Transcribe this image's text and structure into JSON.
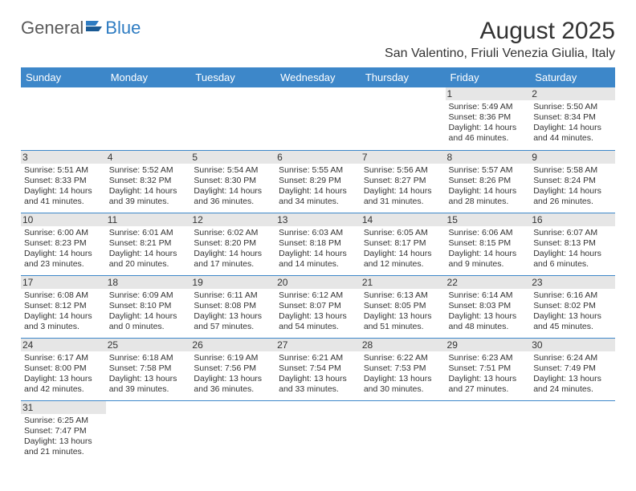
{
  "logo": {
    "text1": "General",
    "text2": "Blue"
  },
  "header": {
    "title": "August 2025",
    "location": "San Valentino, Friuli Venezia Giulia, Italy"
  },
  "colors": {
    "header_bg": "#3d87c9",
    "header_text": "#ffffff",
    "daynum_bg": "#e6e6e6",
    "rule": "#3d87c9",
    "brand_blue": "#2e7cc2",
    "brand_gray": "#5a5a5a"
  },
  "daysOfWeek": [
    "Sunday",
    "Monday",
    "Tuesday",
    "Wednesday",
    "Thursday",
    "Friday",
    "Saturday"
  ],
  "weeks": [
    [
      null,
      null,
      null,
      null,
      null,
      {
        "n": "1",
        "sr": "5:49 AM",
        "ss": "8:36 PM",
        "dl": "14 hours and 46 minutes."
      },
      {
        "n": "2",
        "sr": "5:50 AM",
        "ss": "8:34 PM",
        "dl": "14 hours and 44 minutes."
      }
    ],
    [
      {
        "n": "3",
        "sr": "5:51 AM",
        "ss": "8:33 PM",
        "dl": "14 hours and 41 minutes."
      },
      {
        "n": "4",
        "sr": "5:52 AM",
        "ss": "8:32 PM",
        "dl": "14 hours and 39 minutes."
      },
      {
        "n": "5",
        "sr": "5:54 AM",
        "ss": "8:30 PM",
        "dl": "14 hours and 36 minutes."
      },
      {
        "n": "6",
        "sr": "5:55 AM",
        "ss": "8:29 PM",
        "dl": "14 hours and 34 minutes."
      },
      {
        "n": "7",
        "sr": "5:56 AM",
        "ss": "8:27 PM",
        "dl": "14 hours and 31 minutes."
      },
      {
        "n": "8",
        "sr": "5:57 AM",
        "ss": "8:26 PM",
        "dl": "14 hours and 28 minutes."
      },
      {
        "n": "9",
        "sr": "5:58 AM",
        "ss": "8:24 PM",
        "dl": "14 hours and 26 minutes."
      }
    ],
    [
      {
        "n": "10",
        "sr": "6:00 AM",
        "ss": "8:23 PM",
        "dl": "14 hours and 23 minutes."
      },
      {
        "n": "11",
        "sr": "6:01 AM",
        "ss": "8:21 PM",
        "dl": "14 hours and 20 minutes."
      },
      {
        "n": "12",
        "sr": "6:02 AM",
        "ss": "8:20 PM",
        "dl": "14 hours and 17 minutes."
      },
      {
        "n": "13",
        "sr": "6:03 AM",
        "ss": "8:18 PM",
        "dl": "14 hours and 14 minutes."
      },
      {
        "n": "14",
        "sr": "6:05 AM",
        "ss": "8:17 PM",
        "dl": "14 hours and 12 minutes."
      },
      {
        "n": "15",
        "sr": "6:06 AM",
        "ss": "8:15 PM",
        "dl": "14 hours and 9 minutes."
      },
      {
        "n": "16",
        "sr": "6:07 AM",
        "ss": "8:13 PM",
        "dl": "14 hours and 6 minutes."
      }
    ],
    [
      {
        "n": "17",
        "sr": "6:08 AM",
        "ss": "8:12 PM",
        "dl": "14 hours and 3 minutes."
      },
      {
        "n": "18",
        "sr": "6:09 AM",
        "ss": "8:10 PM",
        "dl": "14 hours and 0 minutes."
      },
      {
        "n": "19",
        "sr": "6:11 AM",
        "ss": "8:08 PM",
        "dl": "13 hours and 57 minutes."
      },
      {
        "n": "20",
        "sr": "6:12 AM",
        "ss": "8:07 PM",
        "dl": "13 hours and 54 minutes."
      },
      {
        "n": "21",
        "sr": "6:13 AM",
        "ss": "8:05 PM",
        "dl": "13 hours and 51 minutes."
      },
      {
        "n": "22",
        "sr": "6:14 AM",
        "ss": "8:03 PM",
        "dl": "13 hours and 48 minutes."
      },
      {
        "n": "23",
        "sr": "6:16 AM",
        "ss": "8:02 PM",
        "dl": "13 hours and 45 minutes."
      }
    ],
    [
      {
        "n": "24",
        "sr": "6:17 AM",
        "ss": "8:00 PM",
        "dl": "13 hours and 42 minutes."
      },
      {
        "n": "25",
        "sr": "6:18 AM",
        "ss": "7:58 PM",
        "dl": "13 hours and 39 minutes."
      },
      {
        "n": "26",
        "sr": "6:19 AM",
        "ss": "7:56 PM",
        "dl": "13 hours and 36 minutes."
      },
      {
        "n": "27",
        "sr": "6:21 AM",
        "ss": "7:54 PM",
        "dl": "13 hours and 33 minutes."
      },
      {
        "n": "28",
        "sr": "6:22 AM",
        "ss": "7:53 PM",
        "dl": "13 hours and 30 minutes."
      },
      {
        "n": "29",
        "sr": "6:23 AM",
        "ss": "7:51 PM",
        "dl": "13 hours and 27 minutes."
      },
      {
        "n": "30",
        "sr": "6:24 AM",
        "ss": "7:49 PM",
        "dl": "13 hours and 24 minutes."
      }
    ],
    [
      {
        "n": "31",
        "sr": "6:25 AM",
        "ss": "7:47 PM",
        "dl": "13 hours and 21 minutes."
      },
      null,
      null,
      null,
      null,
      null,
      null
    ]
  ],
  "labels": {
    "sunrise": "Sunrise:",
    "sunset": "Sunset:",
    "daylight": "Daylight:"
  }
}
